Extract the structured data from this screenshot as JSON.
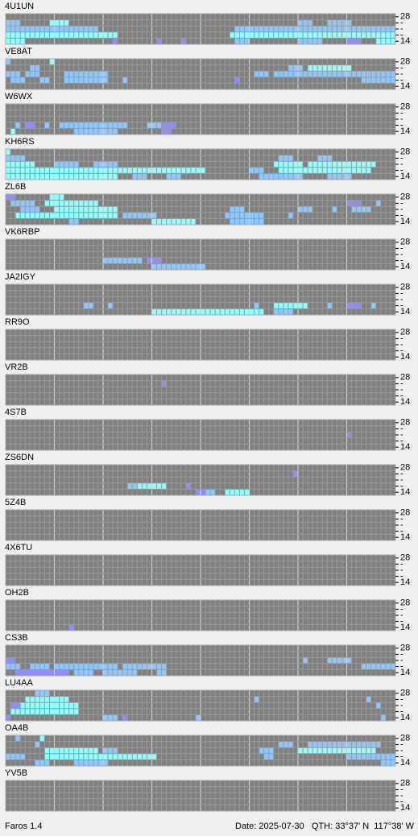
{
  "band_labels": [
    "28",
    "-",
    "-",
    "-",
    "14"
  ],
  "level_colors": [
    "#8c8cff",
    "#8cc8ff",
    "#8cffff"
  ],
  "columns": 80,
  "beacons": [
    {
      "name": "4U1UN",
      "cells": [
        [
          1,
          0,
          2,
          2
        ],
        [
          1,
          9,
          12,
          3
        ],
        [
          1,
          60,
          62,
          2
        ],
        [
          1,
          66,
          70,
          2
        ],
        [
          2,
          0,
          18,
          2
        ],
        [
          2,
          47,
          79,
          2
        ],
        [
          3,
          0,
          22,
          3
        ],
        [
          3,
          46,
          79,
          3
        ],
        [
          4,
          0,
          3,
          3
        ],
        [
          4,
          22,
          22,
          1
        ],
        [
          4,
          31,
          31,
          1
        ],
        [
          4,
          36,
          36,
          1
        ],
        [
          4,
          47,
          49,
          2
        ],
        [
          4,
          60,
          64,
          2
        ],
        [
          4,
          70,
          72,
          1
        ],
        [
          4,
          76,
          79,
          3
        ]
      ]
    },
    {
      "name": "VE8AT",
      "cells": [
        [
          0,
          0,
          0,
          2
        ],
        [
          0,
          9,
          9,
          3
        ],
        [
          1,
          5,
          6,
          2
        ],
        [
          1,
          58,
          60,
          2
        ],
        [
          1,
          62,
          70,
          3
        ],
        [
          2,
          0,
          2,
          2
        ],
        [
          2,
          4,
          6,
          2
        ],
        [
          2,
          12,
          20,
          2
        ],
        [
          2,
          51,
          53,
          2
        ],
        [
          2,
          55,
          79,
          2
        ],
        [
          3,
          1,
          3,
          2
        ],
        [
          3,
          7,
          8,
          2
        ],
        [
          3,
          12,
          20,
          2
        ],
        [
          3,
          24,
          24,
          2
        ],
        [
          3,
          47,
          47,
          1
        ],
        [
          3,
          73,
          79,
          2
        ]
      ]
    },
    {
      "name": "W6WX",
      "cells": [
        [
          3,
          2,
          2,
          2
        ],
        [
          3,
          4,
          5,
          1
        ],
        [
          3,
          8,
          8,
          2
        ],
        [
          3,
          11,
          14,
          2
        ],
        [
          3,
          15,
          24,
          2
        ],
        [
          3,
          29,
          31,
          2
        ],
        [
          3,
          32,
          34,
          1
        ],
        [
          4,
          1,
          1,
          3
        ],
        [
          4,
          14,
          22,
          2
        ],
        [
          4,
          32,
          33,
          1
        ]
      ]
    },
    {
      "name": "KH6RS",
      "cells": [
        [
          0,
          0,
          0,
          3
        ],
        [
          1,
          0,
          3,
          2
        ],
        [
          1,
          56,
          58,
          2
        ],
        [
          1,
          64,
          66,
          2
        ],
        [
          2,
          0,
          5,
          3
        ],
        [
          2,
          10,
          14,
          2
        ],
        [
          2,
          18,
          22,
          2
        ],
        [
          2,
          55,
          60,
          3
        ],
        [
          2,
          62,
          75,
          3
        ],
        [
          3,
          0,
          40,
          3
        ],
        [
          3,
          50,
          52,
          2
        ],
        [
          3,
          56,
          74,
          3
        ],
        [
          4,
          0,
          22,
          3
        ],
        [
          4,
          26,
          28,
          2
        ],
        [
          4,
          33,
          35,
          2
        ],
        [
          4,
          52,
          60,
          2
        ],
        [
          4,
          66,
          70,
          2
        ]
      ]
    },
    {
      "name": "ZL6B",
      "cells": [
        [
          0,
          0,
          1,
          1
        ],
        [
          0,
          9,
          11,
          3
        ],
        [
          1,
          1,
          5,
          2
        ],
        [
          1,
          8,
          18,
          3
        ],
        [
          1,
          70,
          72,
          1
        ],
        [
          1,
          76,
          76,
          2
        ],
        [
          2,
          3,
          6,
          2
        ],
        [
          2,
          10,
          22,
          3
        ],
        [
          2,
          46,
          48,
          2
        ],
        [
          2,
          60,
          62,
          2
        ],
        [
          2,
          67,
          67,
          2
        ],
        [
          2,
          71,
          74,
          2
        ],
        [
          3,
          2,
          22,
          3
        ],
        [
          3,
          24,
          30,
          2
        ],
        [
          3,
          45,
          52,
          2
        ],
        [
          3,
          58,
          58,
          2
        ],
        [
          4,
          13,
          14,
          2
        ],
        [
          4,
          30,
          38,
          3
        ],
        [
          4,
          46,
          52,
          2
        ]
      ]
    },
    {
      "name": "VK6RBP",
      "cells": [
        [
          3,
          20,
          27,
          2
        ],
        [
          3,
          29,
          31,
          1
        ],
        [
          4,
          30,
          40,
          2
        ]
      ]
    },
    {
      "name": "JA2IGY",
      "cells": [
        [
          3,
          16,
          17,
          2
        ],
        [
          3,
          21,
          21,
          2
        ],
        [
          3,
          51,
          51,
          2
        ],
        [
          3,
          55,
          61,
          3
        ],
        [
          3,
          66,
          66,
          2
        ],
        [
          3,
          70,
          72,
          1
        ],
        [
          3,
          75,
          75,
          2
        ],
        [
          4,
          30,
          52,
          3
        ],
        [
          4,
          55,
          58,
          2
        ]
      ]
    },
    {
      "name": "RR9O",
      "cells": []
    },
    {
      "name": "VR2B",
      "cells": [
        [
          1,
          32,
          32,
          1
        ]
      ]
    },
    {
      "name": "4S7B",
      "cells": [
        [
          2,
          70,
          70,
          1
        ]
      ]
    },
    {
      "name": "ZS6DN",
      "cells": [
        [
          1,
          59,
          59,
          1
        ],
        [
          3,
          25,
          26,
          2
        ],
        [
          3,
          27,
          32,
          3
        ],
        [
          3,
          37,
          37,
          1
        ],
        [
          4,
          39,
          40,
          1
        ],
        [
          4,
          41,
          42,
          2
        ],
        [
          4,
          45,
          49,
          3
        ]
      ]
    },
    {
      "name": "5Z4B",
      "cells": []
    },
    {
      "name": "4X6TU",
      "cells": []
    },
    {
      "name": "OH2B",
      "cells": [
        [
          4,
          13,
          13,
          1
        ]
      ]
    },
    {
      "name": "CS3B",
      "cells": [
        [
          2,
          0,
          1,
          1
        ],
        [
          2,
          61,
          61,
          2
        ],
        [
          2,
          66,
          70,
          2
        ],
        [
          3,
          0,
          2,
          2
        ],
        [
          3,
          5,
          8,
          2
        ],
        [
          3,
          10,
          22,
          2
        ],
        [
          3,
          24,
          32,
          2
        ],
        [
          3,
          73,
          79,
          2
        ],
        [
          4,
          2,
          12,
          1
        ],
        [
          4,
          14,
          17,
          2
        ],
        [
          4,
          20,
          26,
          2
        ],
        [
          4,
          31,
          32,
          2
        ]
      ]
    },
    {
      "name": "LU4AA",
      "cells": [
        [
          0,
          6,
          8,
          2
        ],
        [
          1,
          4,
          12,
          3
        ],
        [
          1,
          51,
          51,
          2
        ],
        [
          1,
          74,
          74,
          2
        ],
        [
          2,
          1,
          2,
          1
        ],
        [
          2,
          3,
          14,
          3
        ],
        [
          2,
          76,
          76,
          2
        ],
        [
          3,
          1,
          14,
          3
        ],
        [
          4,
          0,
          0,
          1
        ],
        [
          4,
          20,
          22,
          2
        ],
        [
          4,
          24,
          24,
          1
        ],
        [
          4,
          39,
          39,
          2
        ],
        [
          4,
          77,
          77,
          2
        ]
      ]
    },
    {
      "name": "OA4B",
      "cells": [
        [
          0,
          2,
          2,
          2
        ],
        [
          0,
          7,
          7,
          3
        ],
        [
          1,
          6,
          6,
          2
        ],
        [
          1,
          56,
          58,
          2
        ],
        [
          1,
          62,
          76,
          2
        ],
        [
          2,
          8,
          18,
          3
        ],
        [
          2,
          20,
          22,
          2
        ],
        [
          2,
          52,
          54,
          2
        ],
        [
          2,
          60,
          75,
          3
        ],
        [
          3,
          0,
          3,
          2
        ],
        [
          3,
          8,
          30,
          3
        ],
        [
          3,
          53,
          54,
          2
        ],
        [
          3,
          70,
          79,
          2
        ],
        [
          4,
          6,
          8,
          2
        ],
        [
          4,
          14,
          20,
          2
        ],
        [
          4,
          77,
          79,
          2
        ]
      ]
    },
    {
      "name": "YV5B",
      "cells": []
    }
  ],
  "footer": {
    "app": "Faros 1.4",
    "date": "Date: 2025-07-30",
    "qth": "QTH: 33°37' N  117°38' W"
  }
}
